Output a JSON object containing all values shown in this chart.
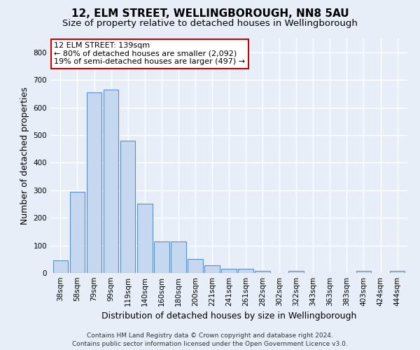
{
  "title": "12, ELM STREET, WELLINGBOROUGH, NN8 5AU",
  "subtitle": "Size of property relative to detached houses in Wellingborough",
  "xlabel": "Distribution of detached houses by size in Wellingborough",
  "ylabel": "Number of detached properties",
  "footer_line1": "Contains HM Land Registry data © Crown copyright and database right 2024.",
  "footer_line2": "Contains public sector information licensed under the Open Government Licence v3.0.",
  "annotation_title": "12 ELM STREET: 139sqm",
  "annotation_line1": "← 80% of detached houses are smaller (2,092)",
  "annotation_line2": "19% of semi-detached houses are larger (497) →",
  "bar_color": "#c5d8f0",
  "bar_edge_color": "#5b8ec4",
  "annotation_box_color": "#ffffff",
  "annotation_box_edge": "#cc0000",
  "categories": [
    "38sqm",
    "58sqm",
    "79sqm",
    "99sqm",
    "119sqm",
    "140sqm",
    "160sqm",
    "180sqm",
    "200sqm",
    "221sqm",
    "241sqm",
    "261sqm",
    "282sqm",
    "302sqm",
    "322sqm",
    "343sqm",
    "363sqm",
    "383sqm",
    "403sqm",
    "424sqm",
    "444sqm"
  ],
  "values": [
    45,
    295,
    655,
    665,
    480,
    252,
    113,
    113,
    50,
    27,
    15,
    15,
    7,
    0,
    7,
    0,
    0,
    0,
    7,
    0,
    7
  ],
  "ylim": [
    0,
    850
  ],
  "yticks": [
    0,
    100,
    200,
    300,
    400,
    500,
    600,
    700,
    800
  ],
  "background_color": "#e8eef8",
  "plot_background": "#e8eef8",
  "grid_color": "#ffffff",
  "title_fontsize": 11,
  "subtitle_fontsize": 9.5,
  "axis_label_fontsize": 9,
  "tick_fontsize": 7.5,
  "annotation_fontsize": 8,
  "footer_fontsize": 6.5
}
